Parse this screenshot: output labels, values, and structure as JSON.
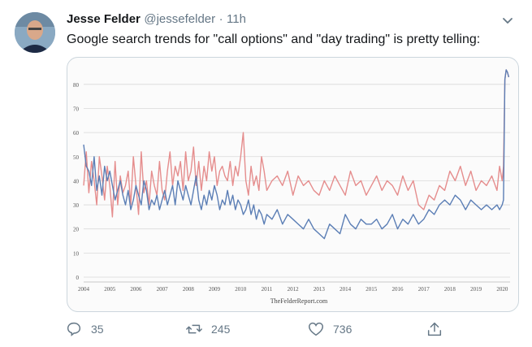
{
  "tweet": {
    "author_name": "Jesse Felder",
    "handle": "@jessefelder",
    "separator": "·",
    "time": "11h",
    "text": "Google search trends for \"call options\" and \"day trading\" is pretty telling:",
    "icons": {
      "menu": "chevron-down-icon",
      "reply": "reply-icon",
      "retweet": "retweet-icon",
      "like": "heart-icon",
      "share": "share-icon"
    },
    "actions": {
      "reply_count": "35",
      "retweet_count": "245",
      "like_count": "736"
    },
    "colors": {
      "text": "#14171a",
      "secondary": "#657786",
      "border": "#ccd6dd"
    }
  },
  "chart_data": {
    "type": "line",
    "title": "",
    "xlabel": "",
    "ylabel": "",
    "watermark": "TheFelderReport.com",
    "xlim": [
      2004,
      2020.3
    ],
    "ylim": [
      0,
      85
    ],
    "x_ticks": [
      "2004",
      "2005",
      "2006",
      "2007",
      "2008",
      "2009",
      "2010",
      "2011",
      "2012",
      "2013",
      "2014",
      "2015",
      "2016",
      "2017",
      "2018",
      "2019",
      "2020"
    ],
    "y_ticks": [
      "0",
      "10",
      "20",
      "30",
      "40",
      "50",
      "60",
      "70",
      "80"
    ],
    "grid": true,
    "colors": {
      "red": "#e58d8d",
      "blue": "#5b7eb5",
      "grid": "#d9d9d9"
    },
    "series": [
      {
        "color_key": "red",
        "x": [
          2004.0,
          2004.1,
          2004.2,
          2004.3,
          2004.4,
          2004.5,
          2004.6,
          2004.7,
          2004.8,
          2004.9,
          2005.0,
          2005.1,
          2005.2,
          2005.3,
          2005.4,
          2005.5,
          2005.6,
          2005.7,
          2005.8,
          2005.9,
          2006.0,
          2006.1,
          2006.2,
          2006.3,
          2006.4,
          2006.5,
          2006.6,
          2006.7,
          2006.8,
          2006.9,
          2007.0,
          2007.1,
          2007.2,
          2007.3,
          2007.4,
          2007.5,
          2007.6,
          2007.7,
          2007.8,
          2007.9,
          2008.0,
          2008.1,
          2008.2,
          2008.3,
          2008.4,
          2008.5,
          2008.6,
          2008.7,
          2008.8,
          2008.9,
          2009.0,
          2009.1,
          2009.2,
          2009.3,
          2009.4,
          2009.5,
          2009.6,
          2009.7,
          2009.8,
          2009.9,
          2010.0,
          2010.1,
          2010.2,
          2010.3,
          2010.4,
          2010.5,
          2010.6,
          2010.7,
          2010.8,
          2010.9,
          2011.0,
          2011.2,
          2011.4,
          2011.6,
          2011.8,
          2012.0,
          2012.2,
          2012.4,
          2012.6,
          2012.8,
          2013.0,
          2013.2,
          2013.4,
          2013.6,
          2013.8,
          2014.0,
          2014.2,
          2014.4,
          2014.6,
          2014.8,
          2015.0,
          2015.2,
          2015.4,
          2015.6,
          2015.8,
          2016.0,
          2016.2,
          2016.4,
          2016.6,
          2016.8,
          2017.0,
          2017.2,
          2017.4,
          2017.6,
          2017.8,
          2018.0,
          2018.2,
          2018.4,
          2018.6,
          2018.8,
          2019.0,
          2019.2,
          2019.4,
          2019.6,
          2019.8,
          2019.9,
          2020.0,
          2020.05,
          2020.1,
          2020.15,
          2020.2,
          2020.25
        ],
        "y": [
          38,
          52,
          35,
          48,
          40,
          30,
          50,
          42,
          32,
          46,
          38,
          25,
          48,
          30,
          42,
          35,
          38,
          44,
          30,
          50,
          38,
          26,
          52,
          35,
          40,
          30,
          44,
          38,
          34,
          48,
          36,
          32,
          44,
          52,
          38,
          46,
          42,
          48,
          36,
          52,
          40,
          44,
          54,
          38,
          48,
          36,
          46,
          40,
          52,
          44,
          50,
          38,
          44,
          46,
          42,
          40,
          48,
          38,
          46,
          42,
          50,
          60,
          40,
          34,
          46,
          38,
          42,
          36,
          50,
          44,
          36,
          40,
          42,
          38,
          44,
          34,
          42,
          38,
          40,
          36,
          34,
          40,
          36,
          42,
          38,
          34,
          44,
          38,
          40,
          34,
          38,
          42,
          36,
          40,
          38,
          34,
          42,
          36,
          40,
          30,
          28,
          34,
          32,
          38,
          36,
          44,
          40,
          46,
          38,
          44,
          36,
          40,
          38,
          42,
          36,
          46,
          40,
          46,
          82,
          86,
          85,
          83
        ]
      },
      {
        "color_key": "blue",
        "x": [
          2004.0,
          2004.1,
          2004.2,
          2004.3,
          2004.4,
          2004.5,
          2004.6,
          2004.7,
          2004.8,
          2004.9,
          2005.0,
          2005.1,
          2005.2,
          2005.3,
          2005.4,
          2005.5,
          2005.6,
          2005.7,
          2005.8,
          2005.9,
          2006.0,
          2006.1,
          2006.2,
          2006.3,
          2006.4,
          2006.5,
          2006.6,
          2006.7,
          2006.8,
          2006.9,
          2007.0,
          2007.1,
          2007.2,
          2007.3,
          2007.4,
          2007.5,
          2007.6,
          2007.7,
          2007.8,
          2007.9,
          2008.0,
          2008.1,
          2008.2,
          2008.3,
          2008.4,
          2008.5,
          2008.6,
          2008.7,
          2008.8,
          2008.9,
          2009.0,
          2009.1,
          2009.2,
          2009.3,
          2009.4,
          2009.5,
          2009.6,
          2009.7,
          2009.8,
          2009.9,
          2010.0,
          2010.1,
          2010.2,
          2010.3,
          2010.4,
          2010.5,
          2010.6,
          2010.7,
          2010.8,
          2010.9,
          2011.0,
          2011.2,
          2011.4,
          2011.6,
          2011.8,
          2012.0,
          2012.2,
          2012.4,
          2012.6,
          2012.8,
          2013.0,
          2013.2,
          2013.4,
          2013.6,
          2013.8,
          2014.0,
          2014.2,
          2014.4,
          2014.6,
          2014.8,
          2015.0,
          2015.2,
          2015.4,
          2015.6,
          2015.8,
          2016.0,
          2016.2,
          2016.4,
          2016.6,
          2016.8,
          2017.0,
          2017.2,
          2017.4,
          2017.6,
          2017.8,
          2018.0,
          2018.2,
          2018.4,
          2018.6,
          2018.8,
          2019.0,
          2019.2,
          2019.4,
          2019.6,
          2019.8,
          2019.9,
          2020.0,
          2020.05,
          2020.1,
          2020.15,
          2020.2,
          2020.25
        ],
        "y": [
          55,
          46,
          44,
          38,
          50,
          36,
          42,
          34,
          46,
          40,
          44,
          38,
          32,
          36,
          40,
          34,
          30,
          36,
          28,
          32,
          38,
          34,
          30,
          40,
          36,
          28,
          32,
          30,
          34,
          28,
          32,
          36,
          30,
          34,
          38,
          30,
          40,
          36,
          32,
          38,
          34,
          30,
          36,
          42,
          32,
          28,
          34,
          30,
          36,
          32,
          38,
          34,
          28,
          32,
          30,
          36,
          30,
          34,
          28,
          32,
          30,
          26,
          28,
          32,
          26,
          30,
          24,
          28,
          26,
          22,
          26,
          24,
          28,
          22,
          26,
          24,
          22,
          20,
          24,
          20,
          18,
          16,
          22,
          20,
          18,
          26,
          22,
          20,
          24,
          22,
          22,
          24,
          20,
          22,
          26,
          20,
          24,
          22,
          26,
          22,
          24,
          28,
          26,
          30,
          32,
          30,
          34,
          32,
          28,
          32,
          30,
          28,
          30,
          28,
          30,
          28,
          30,
          32,
          82,
          86,
          85,
          83
        ]
      }
    ]
  }
}
